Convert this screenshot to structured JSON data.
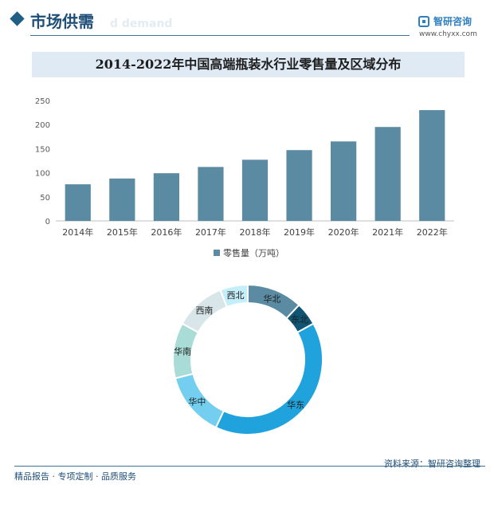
{
  "header": {
    "section_title": "市场供需",
    "section_ghost": "d demand",
    "brand_name": "智研咨询",
    "brand_url": "www.chyxx.com"
  },
  "chart_data": [
    {
      "type": "bar",
      "title": "2014-2022年中国高端瓶装水行业零售量及区域分布",
      "categories": [
        "2014年",
        "2015年",
        "2016年",
        "2017年",
        "2018年",
        "2019年",
        "2020年",
        "2021年",
        "2022年"
      ],
      "series": [
        {
          "name": "零售量（万吨）",
          "values": [
            76,
            88,
            99,
            112,
            127,
            147,
            165,
            195,
            230
          ]
        }
      ],
      "yticks": [
        0,
        50,
        100,
        150,
        200,
        250
      ],
      "ylim": [
        0,
        250
      ],
      "grid": false,
      "legend": "bottom",
      "color": "#5b8ba3"
    },
    {
      "type": "pie",
      "donut": true,
      "slices": [
        {
          "label": "华北",
          "value": 12,
          "color": "#5b8ba3"
        },
        {
          "label": "东北",
          "value": 5,
          "color": "#115574"
        },
        {
          "label": "华东",
          "value": 40,
          "color": "#20a3dc"
        },
        {
          "label": "华中",
          "value": 14,
          "color": "#73ceef"
        },
        {
          "label": "华南",
          "value": 12,
          "color": "#a9dcd6"
        },
        {
          "label": "西南",
          "value": 11,
          "color": "#d9e6e9"
        },
        {
          "label": "西北",
          "value": 6,
          "color": "#c5eefb"
        }
      ]
    }
  ],
  "footer": {
    "source": "资料来源：智研咨询整理",
    "tagline": "精品报告 · 专项定制 · 品质服务"
  }
}
